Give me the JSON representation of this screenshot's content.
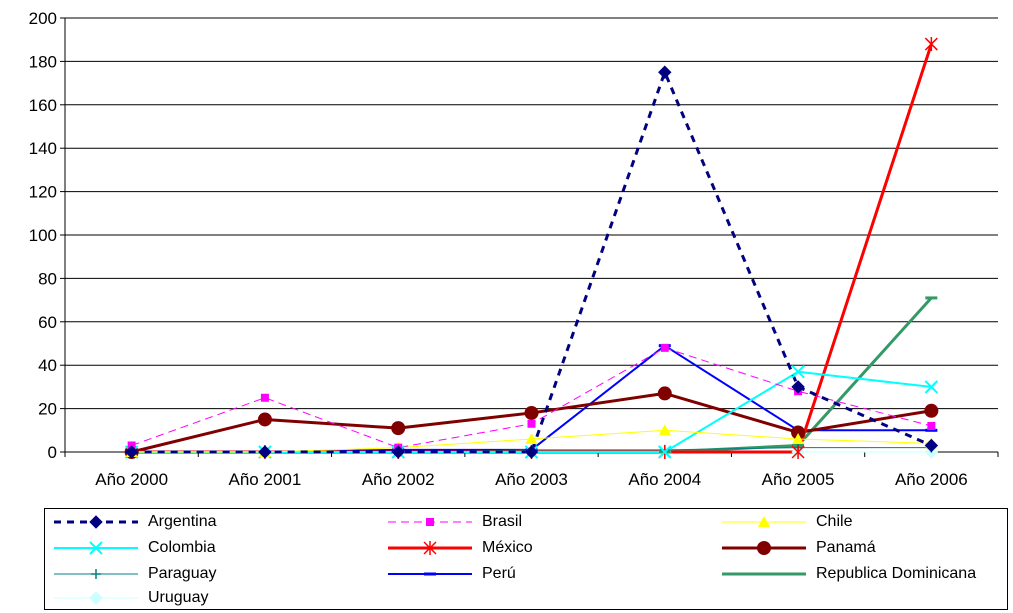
{
  "chart_data": {
    "type": "line",
    "categories": [
      "Año 2000",
      "Año 2001",
      "Año 2002",
      "Año 2003",
      "Año 2004",
      "Año 2005",
      "Año 2006"
    ],
    "ylim": [
      0,
      200
    ],
    "yticks": [
      0,
      20,
      40,
      60,
      80,
      100,
      120,
      140,
      160,
      180,
      200
    ],
    "ytick_labels": [
      "0",
      "20",
      "40",
      "60",
      "80",
      "100",
      "120",
      "140",
      "160",
      "180",
      "200"
    ],
    "grid": true,
    "legend_position": "bottom",
    "series": [
      {
        "name": "Argentina",
        "color": "#000080",
        "dash": "dashed",
        "marker": "diamond",
        "width": 3,
        "values": [
          0,
          0,
          0,
          0,
          175,
          30,
          3
        ]
      },
      {
        "name": "Brasil",
        "color": "#FF00FF",
        "dash": "dashed",
        "marker": "square",
        "width": 1,
        "values": [
          3,
          25,
          2,
          13,
          48,
          28,
          12
        ]
      },
      {
        "name": "Chile",
        "color": "#FFFF00",
        "dash": "solid",
        "marker": "triangle",
        "width": 1,
        "values": [
          0,
          0,
          2,
          6,
          10,
          6,
          4
        ]
      },
      {
        "name": "Colombia",
        "color": "#00FFFF",
        "dash": "solid",
        "marker": "x",
        "width": 2,
        "values": [
          0,
          0,
          0,
          0,
          0,
          37,
          30
        ]
      },
      {
        "name": "México",
        "color": "#FF0000",
        "dash": "solid",
        "marker": "star",
        "width": 3,
        "values": [
          0,
          0,
          0,
          0,
          0,
          0,
          188
        ]
      },
      {
        "name": "Panamá",
        "color": "#800000",
        "dash": "solid",
        "marker": "circle",
        "width": 3,
        "values": [
          0,
          15,
          11,
          18,
          27,
          9,
          19
        ]
      },
      {
        "name": "Paraguay",
        "color": "#008080",
        "dash": "solid",
        "marker": "plus",
        "width": 1,
        "values": [
          0,
          0,
          0,
          1,
          1,
          2,
          2
        ]
      },
      {
        "name": "Perú",
        "color": "#0000FF",
        "dash": "solid",
        "marker": "dash",
        "width": 2,
        "values": [
          0,
          0,
          1,
          1,
          49,
          10,
          10
        ]
      },
      {
        "name": "Republica Dominicana",
        "color": "#339966",
        "dash": "solid",
        "marker": "dash",
        "width": 3,
        "values": [
          0,
          0,
          0,
          0,
          0,
          3,
          71
        ]
      },
      {
        "name": "Uruguay",
        "color": "#CCFFFF",
        "dash": "solid",
        "marker": "diamond",
        "width": 1,
        "values": [
          0,
          0,
          0,
          0,
          0,
          0,
          0
        ]
      }
    ]
  }
}
